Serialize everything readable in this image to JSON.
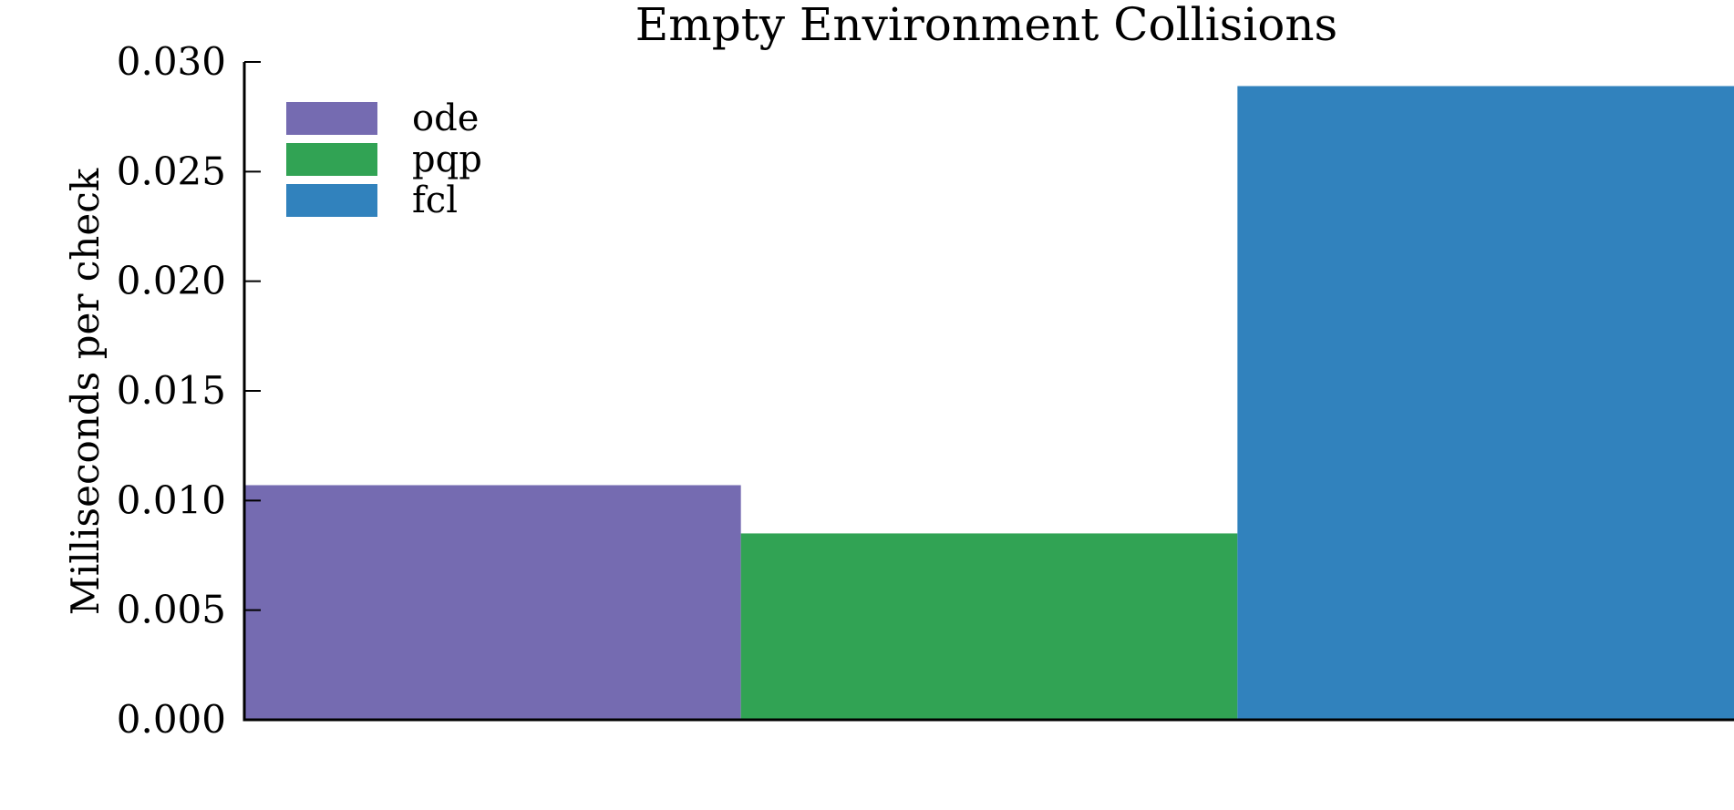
{
  "chart_data": {
    "type": "bar",
    "title": "Empty Environment Collisions",
    "xlabel": "",
    "ylabel": "Milliseconds per check",
    "ylim": [
      0,
      0.03
    ],
    "yticks": [
      "0.000",
      "0.005",
      "0.010",
      "0.015",
      "0.020",
      "0.025",
      "0.030"
    ],
    "series": [
      {
        "name": "ode",
        "value": 0.0107,
        "color": "#756bb1"
      },
      {
        "name": "pqp",
        "value": 0.0085,
        "color": "#31a354"
      },
      {
        "name": "fcl",
        "value": 0.0289,
        "color": "#3182bd"
      }
    ],
    "grid": false,
    "legend": "top-left"
  }
}
